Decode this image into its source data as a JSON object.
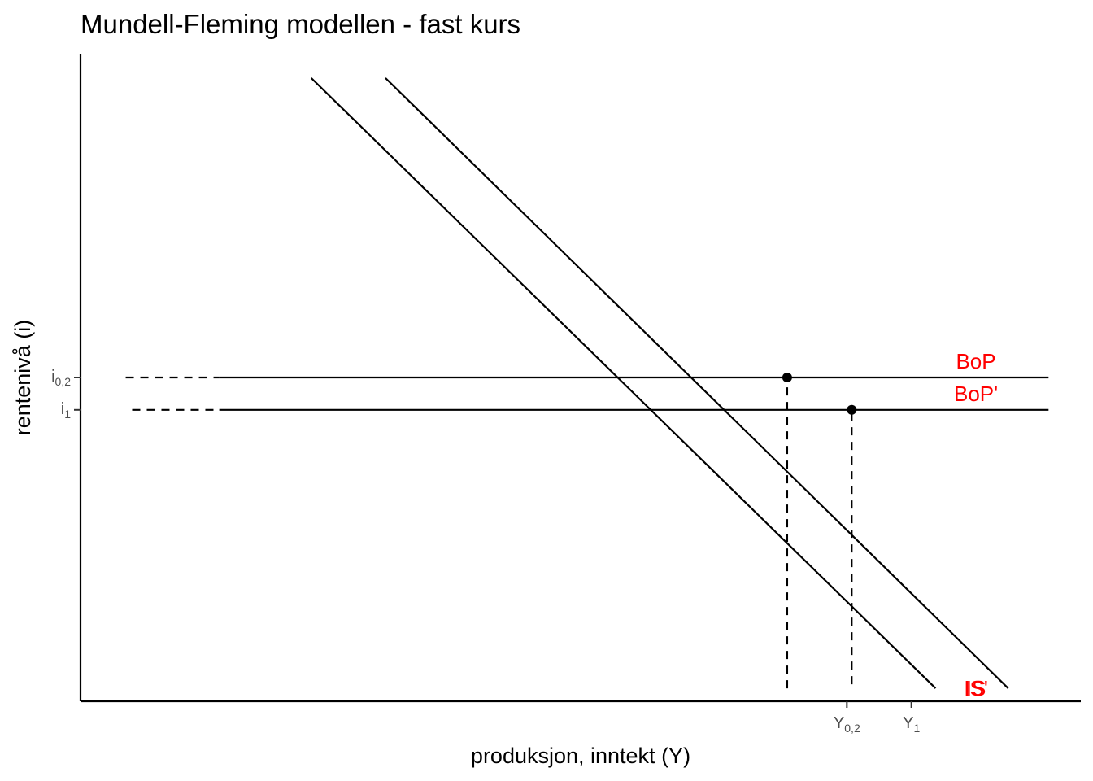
{
  "chart_data": {
    "type": "line",
    "title": "Mundell-Fleming modellen - fast kurs",
    "xlabel": "produksjon, inntekt (Y)",
    "ylabel": "rentenivå (i)",
    "label_color": "#ff0000",
    "line_color": "#000000",
    "grid": false,
    "x_ticks": [
      {
        "main": "Y",
        "sub": "0,2",
        "value": 47.5
      },
      {
        "main": "Y",
        "sub": "1",
        "value": 51.5
      }
    ],
    "y_ticks": [
      {
        "main": "i",
        "sub": "0,2",
        "value": 40
      },
      {
        "main": "i",
        "sub": "1",
        "value": 36
      }
    ],
    "series": [
      {
        "name": "IS",
        "kind": "solid",
        "x": [
          14.3,
          53
        ],
        "y": [
          77,
          1.6
        ],
        "label_x": 55.5,
        "label_y": 1.6
      },
      {
        "name": "IS'",
        "kind": "solid",
        "x": [
          18.9,
          57.5
        ],
        "y": [
          77,
          1.6
        ],
        "label_x": 55.5,
        "label_y": 1.6
      },
      {
        "name": "BoP",
        "kind": "solid",
        "x": [
          8.6,
          60
        ],
        "y": [
          40,
          40
        ],
        "label_x": 55.5,
        "label_y": 42
      },
      {
        "name": "BoP'",
        "kind": "solid",
        "x": [
          8.6,
          60
        ],
        "y": [
          36,
          36
        ],
        "label_x": 55.5,
        "label_y": 38
      }
    ],
    "guides": [
      {
        "kind": "dashed",
        "x": [
          2.8,
          8.6
        ],
        "y": [
          40,
          40
        ]
      },
      {
        "kind": "dashed",
        "x": [
          3.2,
          8.6
        ],
        "y": [
          36,
          36
        ]
      },
      {
        "kind": "dashed",
        "x": [
          43.8,
          47.5
        ],
        "y": [
          1.6,
          1.6
        ],
        "hidden": true
      },
      {
        "kind": "dashed",
        "x": [
          43.8,
          43.8
        ],
        "y": [
          1.6,
          40
        ]
      },
      {
        "kind": "dashed",
        "x": [
          47.8,
          47.8
        ],
        "y": [
          2.1,
          36
        ]
      }
    ],
    "points": [
      {
        "x": 43.8,
        "y": 40
      },
      {
        "x": 47.8,
        "y": 36
      }
    ],
    "xlim": [
      0,
      62
    ],
    "ylim": [
      0,
      80
    ]
  }
}
